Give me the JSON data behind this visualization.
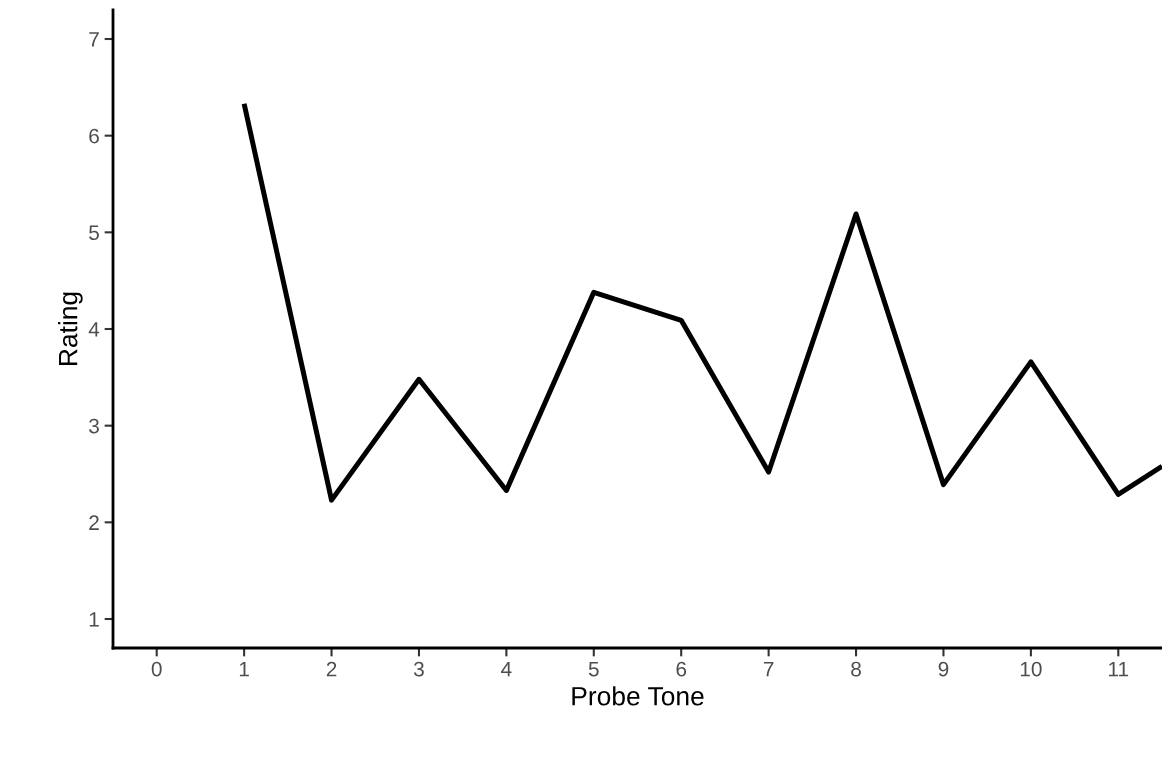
{
  "chart_data": {
    "type": "line",
    "xlabel": "Probe Tone",
    "ylabel": "Rating",
    "x": [
      1,
      2,
      3,
      4,
      5,
      6,
      7,
      8,
      9,
      10,
      11,
      11.5
    ],
    "series": [
      {
        "color": "#000000",
        "values": [
          6.33,
          2.23,
          3.48,
          2.33,
          4.38,
          4.09,
          2.52,
          5.19,
          2.39,
          3.66,
          2.29,
          2.58
        ]
      }
    ],
    "xlim": [
      -0.5,
      11.5
    ],
    "xticks": [
      0,
      1,
      2,
      3,
      4,
      5,
      6,
      7,
      8,
      9,
      10,
      11
    ],
    "ylim": [
      0.7,
      7.3
    ],
    "yticks": [
      1,
      2,
      3,
      4,
      5,
      6,
      7
    ],
    "grid": false,
    "legend": false,
    "marker": "none",
    "line_style": "solid"
  }
}
